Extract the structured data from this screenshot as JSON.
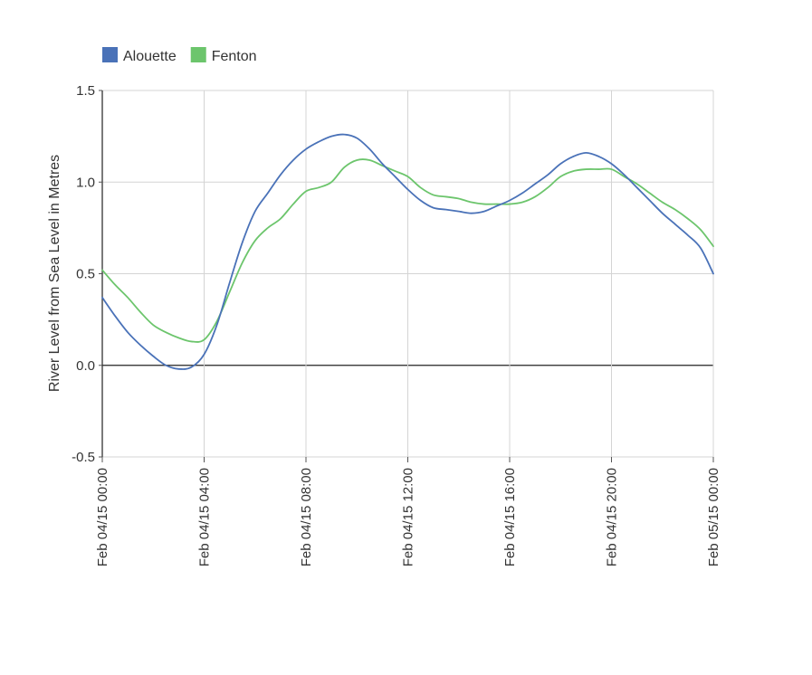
{
  "chart_data": {
    "type": "line",
    "title": "",
    "xlabel": "",
    "ylabel": "River Level from Sea Level in Metres",
    "ylim": [
      -0.5,
      1.5
    ],
    "yticks": [
      "1.5",
      "1.0",
      "0.5",
      "0.0",
      "-0.5"
    ],
    "ytick_values": [
      1.5,
      1.0,
      0.5,
      0.0,
      -0.5
    ],
    "xlim": [
      0,
      24
    ],
    "xticks": [
      "Feb 04/15 00:00",
      "Feb 04/15 04:00",
      "Feb 04/15 08:00",
      "Feb 04/15 12:00",
      "Feb 04/15 16:00",
      "Feb 04/15 20:00",
      "Feb 05/15 00:00"
    ],
    "xtick_values": [
      0,
      4,
      8,
      12,
      16,
      20,
      24
    ],
    "grid": true,
    "legend_position": "top-left",
    "series": [
      {
        "name": "Alouette",
        "color": "#4a72b8",
        "x": [
          0,
          0.5,
          1,
          1.5,
          2,
          2.5,
          3,
          3.5,
          4,
          4.5,
          5,
          5.5,
          6,
          6.5,
          7,
          7.5,
          8,
          8.5,
          9,
          9.5,
          10,
          10.5,
          11,
          11.5,
          12,
          12.5,
          13,
          13.5,
          14,
          14.5,
          15,
          15.5,
          16,
          16.5,
          17,
          17.5,
          18,
          18.5,
          19,
          19.5,
          20,
          20.5,
          21,
          21.5,
          22,
          22.5,
          23,
          23.5,
          24
        ],
        "y": [
          0.37,
          0.27,
          0.18,
          0.11,
          0.05,
          0.0,
          -0.02,
          -0.01,
          0.06,
          0.22,
          0.45,
          0.67,
          0.84,
          0.94,
          1.04,
          1.12,
          1.18,
          1.22,
          1.25,
          1.26,
          1.24,
          1.18,
          1.1,
          1.03,
          0.96,
          0.9,
          0.86,
          0.85,
          0.84,
          0.83,
          0.84,
          0.87,
          0.9,
          0.94,
          0.99,
          1.04,
          1.1,
          1.14,
          1.16,
          1.14,
          1.1,
          1.04,
          0.97,
          0.9,
          0.83,
          0.77,
          0.71,
          0.64,
          0.5
        ]
      },
      {
        "name": "Fenton",
        "color": "#6cc56c",
        "x": [
          0,
          0.5,
          1,
          1.5,
          2,
          2.5,
          3,
          3.5,
          4,
          4.5,
          5,
          5.5,
          6,
          6.5,
          7,
          7.5,
          8,
          8.5,
          9,
          9.5,
          10,
          10.5,
          11,
          11.5,
          12,
          12.5,
          13,
          13.5,
          14,
          14.5,
          15,
          15.5,
          16,
          16.5,
          17,
          17.5,
          18,
          18.5,
          19,
          19.5,
          20,
          20.5,
          21,
          21.5,
          22,
          22.5,
          23,
          23.5,
          24
        ],
        "y": [
          0.52,
          0.44,
          0.37,
          0.29,
          0.22,
          0.18,
          0.15,
          0.13,
          0.14,
          0.24,
          0.4,
          0.56,
          0.68,
          0.75,
          0.8,
          0.88,
          0.95,
          0.97,
          1.0,
          1.08,
          1.12,
          1.12,
          1.09,
          1.06,
          1.03,
          0.97,
          0.93,
          0.92,
          0.91,
          0.89,
          0.88,
          0.88,
          0.88,
          0.89,
          0.92,
          0.97,
          1.03,
          1.06,
          1.07,
          1.07,
          1.07,
          1.03,
          0.99,
          0.94,
          0.89,
          0.85,
          0.8,
          0.74,
          0.65
        ]
      }
    ]
  }
}
